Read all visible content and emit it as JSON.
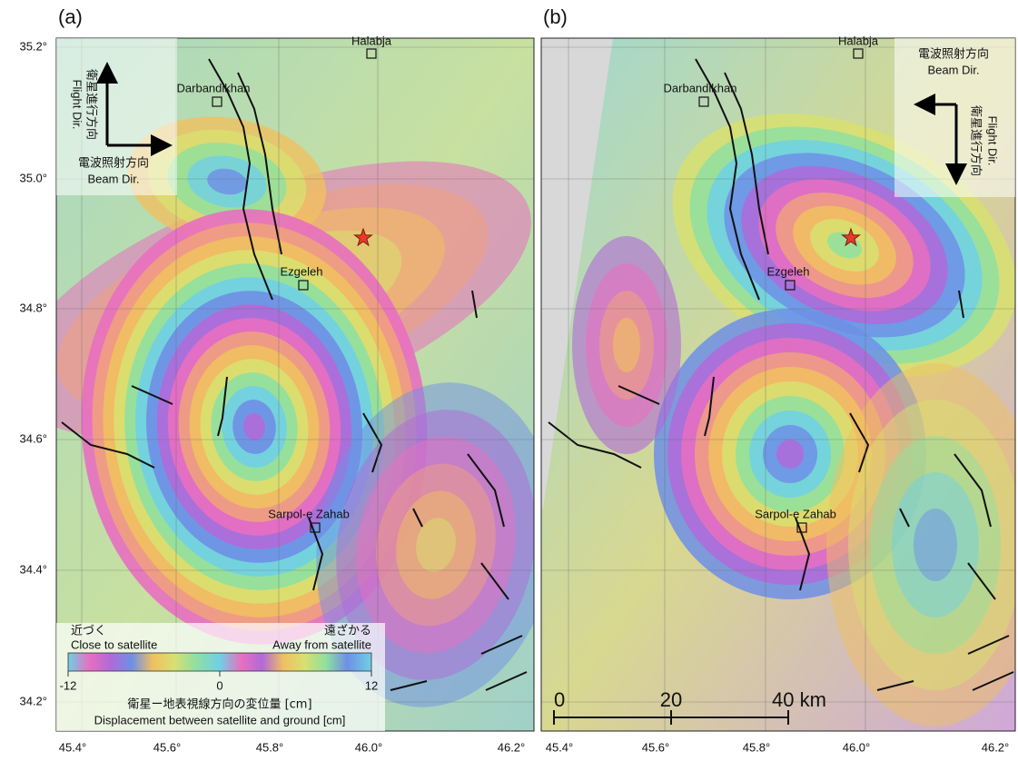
{
  "lat_labels": [
    "35.2°",
    "35.0°",
    "34.8°",
    "34.6°",
    "34.4°",
    "34.2°"
  ],
  "panels": [
    {
      "label": "(a)",
      "places": [
        "Halabja",
        "Darbandikhan",
        "Ezgeleh",
        "Sarpol-e Zahab"
      ],
      "flight_dir": {
        "ja": "衛星進行方向",
        "en": "Flight Dir."
      },
      "beam_dir": {
        "ja": "電波照射方向",
        "en": "Beam Dir."
      },
      "lon_labels": [
        "45.4°",
        "45.6°",
        "45.8°",
        "46.0°",
        "46.2°"
      ]
    },
    {
      "label": "(b)",
      "places": [
        "Halabja",
        "Darbandikhan",
        "Ezgeleh",
        "Sarpol-e Zahab"
      ],
      "flight_dir": {
        "ja": "衛星進行方向",
        "en": "Flight Dir."
      },
      "beam_dir": {
        "ja": "電波照射方向",
        "en": "Beam Dir."
      },
      "lon_labels": [
        "45.4°",
        "45.6°",
        "45.8°",
        "46.0°",
        "46.2°"
      ],
      "scale_bar": [
        "0",
        "20",
        "40 km"
      ]
    }
  ],
  "legend": {
    "close_ja": "近づく",
    "close_en": "Close to satellite",
    "away_ja": "遠ざかる",
    "away_en": "Away from satellite",
    "ticks": [
      "-12",
      "0",
      "12"
    ],
    "title_ja": "衛星ー地表視線方向の変位量 [cm]",
    "title_en": "Displacement between satellite and ground [cm]"
  }
}
